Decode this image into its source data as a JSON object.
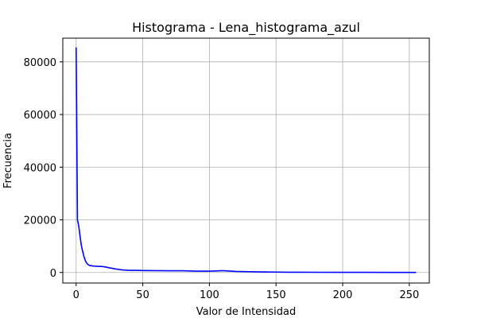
{
  "chart_data": {
    "type": "line",
    "title": "Histograma - Lena_histograma_azul",
    "xlabel": "Valor de Intensidad",
    "ylabel": "Frecuencia",
    "xlim": [
      -10,
      265
    ],
    "ylim": [
      -4000,
      89000
    ],
    "xticks": [
      0,
      50,
      100,
      150,
      200,
      250
    ],
    "yticks": [
      0,
      20000,
      40000,
      60000,
      80000
    ],
    "grid": true,
    "series": [
      {
        "color": "#0000ff",
        "x": [
          0,
          1,
          2,
          3,
          4,
          5,
          6,
          7,
          8,
          9,
          10,
          12,
          14,
          16,
          18,
          20,
          22,
          25,
          30,
          35,
          40,
          45,
          50,
          60,
          70,
          80,
          90,
          100,
          105,
          110,
          115,
          120,
          130,
          140,
          150,
          160,
          180,
          200,
          220,
          240,
          255
        ],
        "y": [
          85500,
          20000,
          17500,
          13500,
          10000,
          7800,
          5800,
          4400,
          3500,
          3000,
          2700,
          2500,
          2400,
          2350,
          2300,
          2250,
          2100,
          1750,
          1300,
          950,
          800,
          800,
          750,
          700,
          650,
          650,
          500,
          500,
          600,
          700,
          550,
          400,
          300,
          200,
          150,
          100,
          80,
          60,
          50,
          30,
          20
        ]
      }
    ]
  }
}
